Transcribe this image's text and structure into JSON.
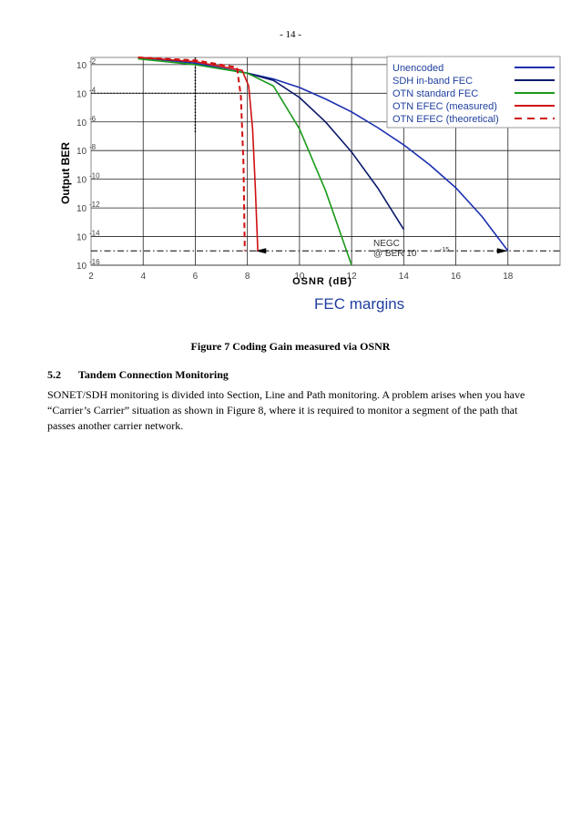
{
  "page_number": "- 14 -",
  "figure": {
    "annotation_margin": "FEC margins",
    "caption": "Figure 7 Coding Gain measured via OSNR",
    "legend_colors": {
      "unencoded": "#1c2fb0",
      "sdh": "#0a1a6a",
      "otn_standard": "#1a9a1a",
      "otn_efec": "#d01010"
    }
  },
  "chart_data": {
    "type": "line",
    "xlabel": "OSNR (dB)",
    "ylabel": "Output BER",
    "x_ticks": [
      "2",
      "4",
      "6",
      "8",
      "10",
      "12",
      "14",
      "16",
      "18"
    ],
    "y_ticks": [
      {
        "base": "10",
        "exp": "-2",
        "value": -2
      },
      {
        "base": "10",
        "exp": "-4",
        "value": -4
      },
      {
        "base": "10",
        "exp": "-6",
        "value": -6
      },
      {
        "base": "10",
        "exp": "-8",
        "value": -8
      },
      {
        "base": "10",
        "exp": "-10",
        "value": -10
      },
      {
        "base": "10",
        "exp": "-12",
        "value": -12
      },
      {
        "base": "10",
        "exp": "-14",
        "value": -14
      },
      {
        "base": "10",
        "exp": "-16",
        "value": -16
      }
    ],
    "xlim": [
      2,
      20
    ],
    "ylim_log10": [
      -16,
      -1.5
    ],
    "y_scale": "log",
    "annotation": {
      "line1": "NEGC",
      "line2": "@ BER 10",
      "exp": "-15"
    },
    "legend_position": "top-right",
    "series": [
      {
        "name": "Unencoded",
        "color": "#1c2fb0",
        "dash": false,
        "x": [
          3.8,
          6,
          8,
          9,
          10,
          11,
          12,
          13,
          14,
          15,
          16,
          17,
          18
        ],
        "log_ber": [
          -1.5,
          -1.9,
          -2.6,
          -3.0,
          -3.6,
          -4.4,
          -5.3,
          -6.4,
          -7.6,
          -9.0,
          -10.6,
          -12.6,
          -15.0
        ]
      },
      {
        "name": "SDH in-band FEC",
        "color": "#0a1a6a",
        "dash": false,
        "x": [
          8,
          9,
          10,
          11,
          12,
          13,
          14
        ],
        "log_ber": [
          -2.6,
          -3.1,
          -4.3,
          -6.0,
          -8.1,
          -10.6,
          -13.5
        ]
      },
      {
        "name": "OTN standard FEC",
        "color": "#1a9a1a",
        "dash": false,
        "x": [
          3.8,
          6,
          8,
          9,
          10,
          11,
          12
        ],
        "log_ber": [
          -1.6,
          -2.0,
          -2.6,
          -3.5,
          -6.5,
          -10.8,
          -16.0
        ]
      },
      {
        "name": "OTN EFEC (measured)",
        "color": "#d01010",
        "dash": false,
        "x": [
          3.8,
          6,
          7.8,
          8.05,
          8.2,
          8.3,
          8.4
        ],
        "log_ber": [
          -1.5,
          -1.8,
          -2.4,
          -3.5,
          -6.5,
          -10.5,
          -15.0
        ]
      },
      {
        "name": "OTN EFEC (theoretical)",
        "color": "#d01010",
        "dash": true,
        "x": [
          3.8,
          6,
          7.6,
          7.75,
          7.85,
          7.9
        ],
        "log_ber": [
          -1.5,
          -1.7,
          -2.2,
          -4.2,
          -9.0,
          -15.0
        ]
      }
    ]
  },
  "section": {
    "number": "5.2",
    "title": "Tandem Connection Monitoring",
    "paragraph": "SONET/SDH monitoring is divided into Section, Line and Path monitoring. A problem arises when you have “Carrier’s Carrier” situation as shown in Figure 8,  where it is required to monitor a segment of the path that passes another carrier network."
  }
}
